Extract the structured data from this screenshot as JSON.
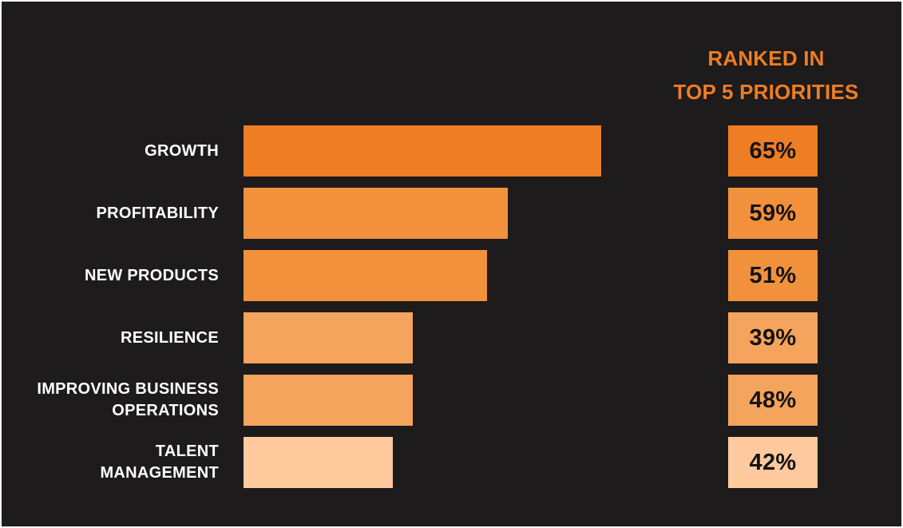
{
  "header": {
    "line1": "RANKED IN",
    "line2": "TOP 5 PRIORITIES"
  },
  "colors": {
    "background": "#1d1b1b",
    "accent": "#ee7d23",
    "shades": [
      "#ee7d23",
      "#f1913b",
      "#f1913b",
      "#f4a45c",
      "#f4a45c",
      "#ffcb9e"
    ]
  },
  "chart_data": {
    "type": "bar",
    "orientation": "horizontal",
    "categories": [
      [
        "GROWTH"
      ],
      [
        "PROFITABILITY"
      ],
      [
        "NEW PRODUCTS"
      ],
      [
        "RESILIENCE"
      ],
      [
        "IMPROVING BUSINESS",
        "OPERATIONS"
      ],
      [
        "TALENT",
        "MANAGEMENT"
      ]
    ],
    "values": [
      65,
      59,
      51,
      39,
      48,
      42
    ],
    "value_labels": [
      "65%",
      "59%",
      "51%",
      "39%",
      "48%",
      "42%"
    ],
    "xlim": [
      0,
      100
    ],
    "grid": false
  }
}
